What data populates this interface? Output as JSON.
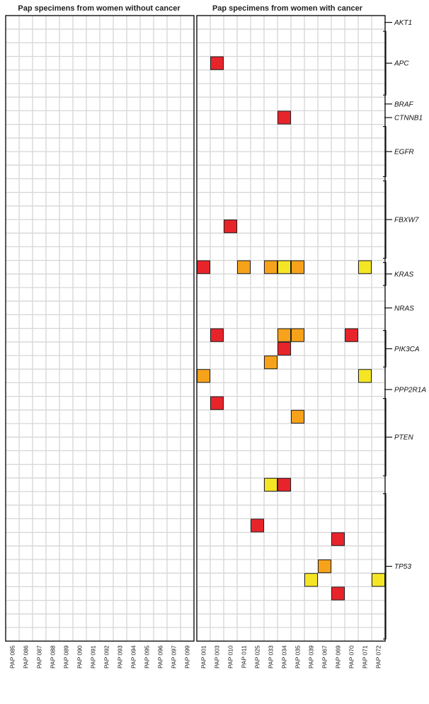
{
  "chart_data": {
    "type": "heatmap",
    "panels": [
      {
        "title": "Pap specimens from women without cancer",
        "samples": [
          "PAP 085",
          "PAP 086",
          "PAP 087",
          "PAP 088",
          "PAP 089",
          "PAP 090",
          "PAP 091",
          "PAP 092",
          "PAP 093",
          "PAP 094",
          "PAP 095",
          "PAP 096",
          "PAP 097",
          "PAP 099"
        ],
        "mutations": []
      },
      {
        "title": "Pap specimens from women with cancer",
        "samples": [
          "PAP 001",
          "PAP 003",
          "PAP 010",
          "PAP 011",
          "PAP 025",
          "PAP 033",
          "PAP 034",
          "PAP 035",
          "PAP 039",
          "PAP 067",
          "PAP 069",
          "PAP 070",
          "PAP 071",
          "PAP 072"
        ],
        "mutations": [
          {
            "sample": "PAP 003",
            "row": 3,
            "color": "red"
          },
          {
            "sample": "PAP 034",
            "row": 7,
            "color": "red"
          },
          {
            "sample": "PAP 010",
            "row": 15,
            "color": "red"
          },
          {
            "sample": "PAP 001",
            "row": 18,
            "color": "red"
          },
          {
            "sample": "PAP 011",
            "row": 18,
            "color": "orange"
          },
          {
            "sample": "PAP 033",
            "row": 18,
            "color": "orange"
          },
          {
            "sample": "PAP 034",
            "row": 18,
            "color": "yellow"
          },
          {
            "sample": "PAP 035",
            "row": 18,
            "color": "orange"
          },
          {
            "sample": "PAP 071",
            "row": 18,
            "color": "yellow"
          },
          {
            "sample": "PAP 003",
            "row": 23,
            "color": "red"
          },
          {
            "sample": "PAP 034",
            "row": 23,
            "color": "orange"
          },
          {
            "sample": "PAP 035",
            "row": 23,
            "color": "orange"
          },
          {
            "sample": "PAP 070",
            "row": 23,
            "color": "red"
          },
          {
            "sample": "PAP 034",
            "row": 24,
            "color": "red"
          },
          {
            "sample": "PAP 033",
            "row": 25,
            "color": "orange"
          },
          {
            "sample": "PAP 001",
            "row": 26,
            "color": "orange"
          },
          {
            "sample": "PAP 071",
            "row": 26,
            "color": "yellow"
          },
          {
            "sample": "PAP 003",
            "row": 28,
            "color": "red"
          },
          {
            "sample": "PAP 035",
            "row": 29,
            "color": "orange"
          },
          {
            "sample": "PAP 033",
            "row": 34,
            "color": "yellow"
          },
          {
            "sample": "PAP 034",
            "row": 34,
            "color": "red"
          },
          {
            "sample": "PAP 025",
            "row": 37,
            "color": "red"
          },
          {
            "sample": "PAP 069",
            "row": 38,
            "color": "red"
          },
          {
            "sample": "PAP 067",
            "row": 40,
            "color": "orange"
          },
          {
            "sample": "PAP 039",
            "row": 41,
            "color": "yellow"
          },
          {
            "sample": "PAP 072",
            "row": 41,
            "color": "yellow"
          },
          {
            "sample": "PAP 069",
            "row": 42,
            "color": "red"
          }
        ]
      }
    ],
    "row_count": 46,
    "genes": [
      {
        "name": "AKT1",
        "start_row": 0,
        "end_row": 0
      },
      {
        "name": "APC",
        "start_row": 1,
        "end_row": 5
      },
      {
        "name": "BRAF",
        "start_row": 6,
        "end_row": 6
      },
      {
        "name": "CTNNB1",
        "start_row": 7,
        "end_row": 7
      },
      {
        "name": "EGFR",
        "start_row": 8,
        "end_row": 11
      },
      {
        "name": "FBXW7",
        "start_row": 12,
        "end_row": 17
      },
      {
        "name": "KRAS",
        "start_row": 18,
        "end_row": 19
      },
      {
        "name": "NRAS",
        "start_row": 21,
        "end_row": 21
      },
      {
        "name": "PIK3CA",
        "start_row": 23,
        "end_row": 25
      },
      {
        "name": "PPP2R1A",
        "start_row": 27,
        "end_row": 27
      },
      {
        "name": "PTEN",
        "start_row": 28,
        "end_row": 33
      },
      {
        "name": "TP53",
        "start_row": 35,
        "end_row": 45
      }
    ],
    "colors": {
      "red": "#e8242b",
      "orange": "#f7a21b",
      "yellow": "#f5e625",
      "grid": "#d6d6d6",
      "border": "#111111"
    }
  }
}
